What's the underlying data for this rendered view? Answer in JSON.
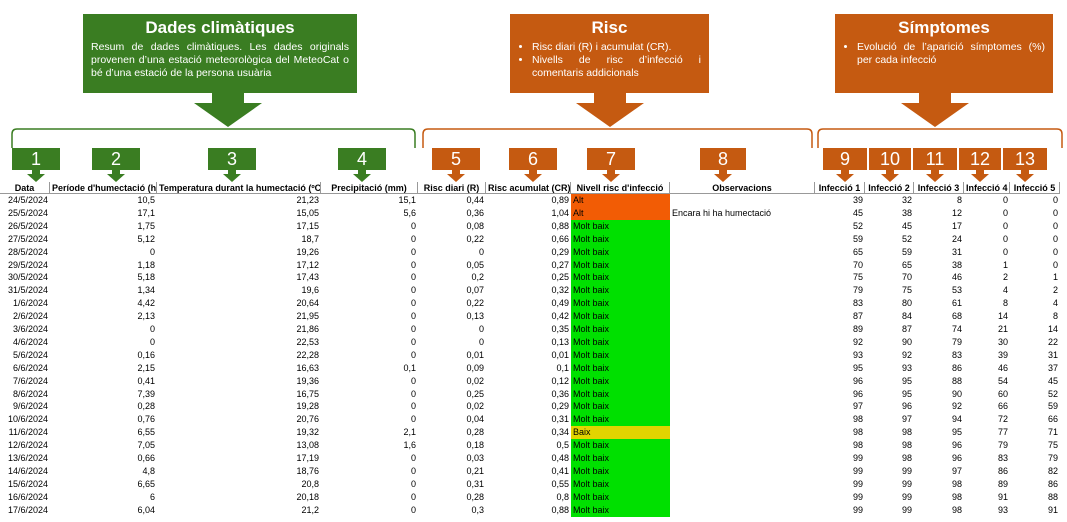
{
  "callouts": [
    {
      "title": "Dades climàtiques",
      "text": "Resum de dades climàtiques. Les dades originals provenen d’una estació meteorològica del MeteoCat o bé d’una estació de la persona usuària"
    },
    {
      "title": "Risc",
      "bullets": [
        "Risc diari (R) i acumulat (CR).",
        "Nivells de risc d’infecció i comentaris addicionals"
      ]
    },
    {
      "title": "Símptomes",
      "bullets": [
        "Evolució de l’aparició símptomes (%) per cada infecció"
      ]
    }
  ],
  "column_numbers": [
    "1",
    "2",
    "3",
    "4",
    "5",
    "6",
    "7",
    "8",
    "9",
    "10",
    "11",
    "12",
    "13"
  ],
  "table": {
    "headers": [
      "Data",
      "Període d'humectació (h)",
      "Temperatura durant la humectació (ºC)",
      "Precipitació (mm)",
      "Risc diari (R)",
      "Risc acumulat (CR)",
      "Nivell risc d'infecció",
      "Observacions",
      "Infecció 1",
      "Infecció 2",
      "Infecció 3",
      "Infecció 4",
      "Infecció 5"
    ],
    "rows": [
      [
        "24/5/2024",
        "10,5",
        "21,23",
        "15,1",
        "0,44",
        "0,89",
        "Alt",
        "",
        "39",
        "32",
        "8",
        "0",
        "0"
      ],
      [
        "25/5/2024",
        "17,1",
        "15,05",
        "5,6",
        "0,36",
        "1,04",
        "Alt",
        "Encara hi ha humectació",
        "45",
        "38",
        "12",
        "0",
        "0"
      ],
      [
        "26/5/2024",
        "1,75",
        "17,15",
        "0",
        "0,08",
        "0,88",
        "Molt baix",
        "",
        "52",
        "45",
        "17",
        "0",
        "0"
      ],
      [
        "27/5/2024",
        "5,12",
        "18,7",
        "0",
        "0,22",
        "0,66",
        "Molt baix",
        "",
        "59",
        "52",
        "24",
        "0",
        "0"
      ],
      [
        "28/5/2024",
        "0",
        "19,26",
        "0",
        "0",
        "0,29",
        "Molt baix",
        "",
        "65",
        "59",
        "31",
        "0",
        "0"
      ],
      [
        "29/5/2024",
        "1,18",
        "17,12",
        "0",
        "0,05",
        "0,27",
        "Molt baix",
        "",
        "70",
        "65",
        "38",
        "1",
        "0"
      ],
      [
        "30/5/2024",
        "5,18",
        "17,43",
        "0",
        "0,2",
        "0,25",
        "Molt baix",
        "",
        "75",
        "70",
        "46",
        "2",
        "1"
      ],
      [
        "31/5/2024",
        "1,34",
        "19,6",
        "0",
        "0,07",
        "0,32",
        "Molt baix",
        "",
        "79",
        "75",
        "53",
        "4",
        "2"
      ],
      [
        "1/6/2024",
        "4,42",
        "20,64",
        "0",
        "0,22",
        "0,49",
        "Molt baix",
        "",
        "83",
        "80",
        "61",
        "8",
        "4"
      ],
      [
        "2/6/2024",
        "2,13",
        "21,95",
        "0",
        "0,13",
        "0,42",
        "Molt baix",
        "",
        "87",
        "84",
        "68",
        "14",
        "8"
      ],
      [
        "3/6/2024",
        "0",
        "21,86",
        "0",
        "0",
        "0,35",
        "Molt baix",
        "",
        "89",
        "87",
        "74",
        "21",
        "14"
      ],
      [
        "4/6/2024",
        "0",
        "22,53",
        "0",
        "0",
        "0,13",
        "Molt baix",
        "",
        "92",
        "90",
        "79",
        "30",
        "22"
      ],
      [
        "5/6/2024",
        "0,16",
        "22,28",
        "0",
        "0,01",
        "0,01",
        "Molt baix",
        "",
        "93",
        "92",
        "83",
        "39",
        "31"
      ],
      [
        "6/6/2024",
        "2,15",
        "16,63",
        "0,1",
        "0,09",
        "0,1",
        "Molt baix",
        "",
        "95",
        "93",
        "86",
        "46",
        "37"
      ],
      [
        "7/6/2024",
        "0,41",
        "19,36",
        "0",
        "0,02",
        "0,12",
        "Molt baix",
        "",
        "96",
        "95",
        "88",
        "54",
        "45"
      ],
      [
        "8/6/2024",
        "7,39",
        "16,75",
        "0",
        "0,25",
        "0,36",
        "Molt baix",
        "",
        "96",
        "95",
        "90",
        "60",
        "52"
      ],
      [
        "9/6/2024",
        "0,28",
        "19,28",
        "0",
        "0,02",
        "0,29",
        "Molt baix",
        "",
        "97",
        "96",
        "92",
        "66",
        "59"
      ],
      [
        "10/6/2024",
        "0,76",
        "20,76",
        "0",
        "0,04",
        "0,31",
        "Molt baix",
        "",
        "98",
        "97",
        "94",
        "72",
        "66"
      ],
      [
        "11/6/2024",
        "6,55",
        "19,32",
        "2,1",
        "0,28",
        "0,34",
        "Baix",
        "",
        "98",
        "98",
        "95",
        "77",
        "71"
      ],
      [
        "12/6/2024",
        "7,05",
        "13,08",
        "1,6",
        "0,18",
        "0,5",
        "Molt baix",
        "",
        "98",
        "98",
        "96",
        "79",
        "75"
      ],
      [
        "13/6/2024",
        "0,66",
        "17,19",
        "0",
        "0,03",
        "0,48",
        "Molt baix",
        "",
        "99",
        "98",
        "96",
        "83",
        "79"
      ],
      [
        "14/6/2024",
        "4,8",
        "18,76",
        "0",
        "0,21",
        "0,41",
        "Molt baix",
        "",
        "99",
        "99",
        "97",
        "86",
        "82"
      ],
      [
        "15/6/2024",
        "6,65",
        "20,8",
        "0",
        "0,31",
        "0,55",
        "Molt baix",
        "",
        "99",
        "99",
        "98",
        "89",
        "86"
      ],
      [
        "16/6/2024",
        "6",
        "20,18",
        "0",
        "0,28",
        "0,8",
        "Molt baix",
        "",
        "99",
        "99",
        "98",
        "91",
        "88"
      ],
      [
        "17/6/2024",
        "6,04",
        "21,2",
        "0",
        "0,3",
        "0,88",
        "Molt baix",
        "",
        "99",
        "99",
        "98",
        "93",
        "91"
      ]
    ],
    "level_colors": [
      "#f25c05",
      "#f25c05",
      "#00e000",
      "#00e000",
      "#00e000",
      "#00e000",
      "#00e000",
      "#00e000",
      "#00e000",
      "#00e000",
      "#00e000",
      "#00e000",
      "#00e000",
      "#00e000",
      "#00e000",
      "#00e000",
      "#00e000",
      "#00e000",
      "#e2d400",
      "#00e000",
      "#00e000",
      "#00e000",
      "#00e000",
      "#00e000",
      "#00e000"
    ]
  }
}
